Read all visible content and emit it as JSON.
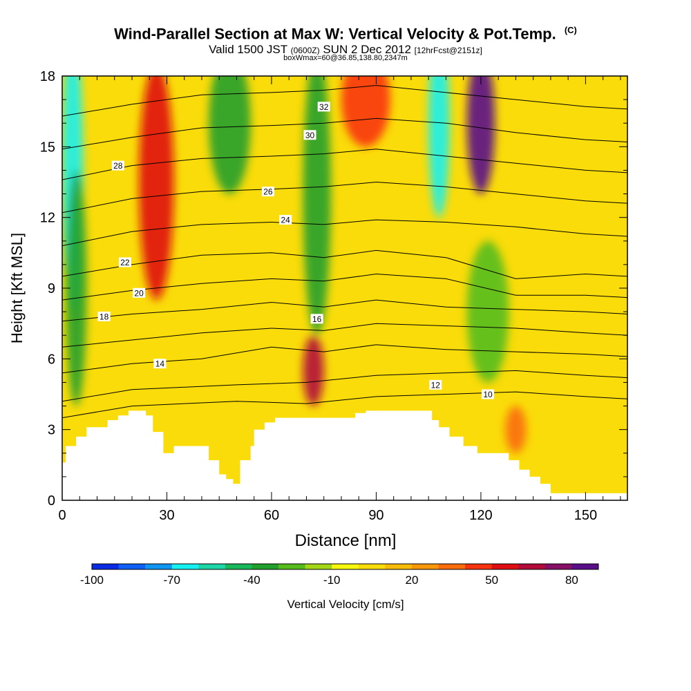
{
  "header": {
    "title_main": "Wind-Parallel Section at Max W: Vertical Velocity & Pot.Temp.",
    "title_mark": "(C)",
    "valid_a": "Valid 1500 JST",
    "valid_b": "(0600Z)",
    "valid_c": "SUN 2 Dec 2012",
    "valid_d": "[12hrFcst@2151z]",
    "box_info": "boxWmax=60@36.85,138.80,2347m"
  },
  "chart_data": {
    "type": "heatmap",
    "xlabel": "Distance [nm]",
    "ylabel": "Height [Kft MSL]",
    "xlim": [
      0,
      162
    ],
    "ylim": [
      0,
      18
    ],
    "x_ticks": [
      "0",
      "30",
      "60",
      "90",
      "120",
      "150"
    ],
    "x_tick_values": [
      0,
      30,
      60,
      90,
      120,
      150
    ],
    "y_ticks": [
      "0",
      "3",
      "6",
      "9",
      "12",
      "15",
      "18"
    ],
    "y_tick_values": [
      0,
      3,
      6,
      9,
      12,
      15,
      18
    ],
    "colorbar": {
      "label": "Vertical Velocity [cm/s]",
      "min": -100,
      "max": 90,
      "step": 10,
      "tick_labels": [
        "-100",
        "-70",
        "-40",
        "-10",
        "20",
        "50",
        "80"
      ],
      "tick_values": [
        -100,
        -70,
        -40,
        -10,
        20,
        50,
        80
      ],
      "colors": [
        "#0a2be6",
        "#0d5ff5",
        "#0f96f2",
        "#17f0f0",
        "#1cd6a8",
        "#18b85a",
        "#22a02e",
        "#55bc1c",
        "#a3d716",
        "#f7f70e",
        "#fadc0a",
        "#f9bb08",
        "#f9970a",
        "#f96d0d",
        "#f8330d",
        "#df0e10",
        "#b10c3a",
        "#871066",
        "#5a0e8a"
      ]
    },
    "terrain": [
      [
        0,
        1.6
      ],
      [
        1,
        1.6
      ],
      [
        1,
        2.3
      ],
      [
        4,
        2.3
      ],
      [
        4,
        2.7
      ],
      [
        7,
        2.7
      ],
      [
        7,
        3.1
      ],
      [
        13,
        3.1
      ],
      [
        13,
        3.4
      ],
      [
        16,
        3.4
      ],
      [
        16,
        3.6
      ],
      [
        19,
        3.6
      ],
      [
        19,
        3.8
      ],
      [
        24,
        3.8
      ],
      [
        24,
        3.6
      ],
      [
        26,
        3.6
      ],
      [
        26,
        2.9
      ],
      [
        29,
        2.9
      ],
      [
        29,
        2.0
      ],
      [
        32,
        2.0
      ],
      [
        32,
        2.3
      ],
      [
        42,
        2.3
      ],
      [
        42,
        1.7
      ],
      [
        45,
        1.7
      ],
      [
        45,
        1.1
      ],
      [
        47,
        1.1
      ],
      [
        47,
        0.9
      ],
      [
        49,
        0.9
      ],
      [
        49,
        0.7
      ],
      [
        51,
        0.7
      ],
      [
        51,
        1.7
      ],
      [
        54,
        1.7
      ],
      [
        54,
        2.3
      ],
      [
        55,
        2.3
      ],
      [
        55,
        3.0
      ],
      [
        58,
        3.0
      ],
      [
        58,
        3.3
      ],
      [
        61,
        3.3
      ],
      [
        61,
        3.5
      ],
      [
        84,
        3.5
      ],
      [
        84,
        3.7
      ],
      [
        87,
        3.7
      ],
      [
        87,
        3.8
      ],
      [
        106,
        3.8
      ],
      [
        106,
        3.4
      ],
      [
        108,
        3.4
      ],
      [
        108,
        3.1
      ],
      [
        111,
        3.1
      ],
      [
        111,
        2.7
      ],
      [
        115,
        2.7
      ],
      [
        115,
        2.3
      ],
      [
        119,
        2.3
      ],
      [
        119,
        2.0
      ],
      [
        128,
        2.0
      ],
      [
        128,
        1.7
      ],
      [
        131,
        1.7
      ],
      [
        131,
        1.3
      ],
      [
        134,
        1.3
      ],
      [
        134,
        1.0
      ],
      [
        137,
        1.0
      ],
      [
        137,
        0.7
      ],
      [
        140,
        0.7
      ],
      [
        140,
        0.3
      ],
      [
        162,
        0.3
      ]
    ],
    "contours": [
      {
        "value": 10,
        "label": "10",
        "points": [
          [
            0,
            3.5
          ],
          [
            20,
            4.0
          ],
          [
            50,
            4.2
          ],
          [
            70,
            4.1
          ],
          [
            90,
            4.4
          ],
          [
            110,
            4.5
          ],
          [
            130,
            4.6
          ],
          [
            150,
            4.4
          ],
          [
            162,
            4.3
          ]
        ],
        "label_at": [
          122,
          4.5
        ]
      },
      {
        "value": 12,
        "label": "12",
        "points": [
          [
            0,
            4.2
          ],
          [
            20,
            4.7
          ],
          [
            50,
            4.9
          ],
          [
            70,
            5.0
          ],
          [
            90,
            5.3
          ],
          [
            110,
            5.4
          ],
          [
            130,
            5.5
          ],
          [
            150,
            5.3
          ],
          [
            162,
            5.2
          ]
        ],
        "label_at": [
          107,
          4.9
        ]
      },
      {
        "value": 14,
        "label": "14",
        "points": [
          [
            0,
            5.4
          ],
          [
            20,
            5.8
          ],
          [
            40,
            6.0
          ],
          [
            60,
            6.5
          ],
          [
            75,
            6.3
          ],
          [
            90,
            6.6
          ],
          [
            110,
            6.4
          ],
          [
            130,
            6.3
          ],
          [
            150,
            6.2
          ],
          [
            162,
            6.1
          ]
        ],
        "label_at": [
          28,
          5.8
        ]
      },
      {
        "value": 16,
        "label": "16",
        "points": [
          [
            0,
            6.5
          ],
          [
            20,
            6.8
          ],
          [
            40,
            7.1
          ],
          [
            60,
            7.3
          ],
          [
            75,
            7.2
          ],
          [
            90,
            7.5
          ],
          [
            110,
            7.4
          ],
          [
            130,
            7.3
          ],
          [
            150,
            7.1
          ],
          [
            162,
            7.0
          ]
        ],
        "label_at": [
          73,
          7.7
        ]
      },
      {
        "value": 18,
        "label": "18",
        "points": [
          [
            0,
            7.6
          ],
          [
            20,
            7.9
          ],
          [
            40,
            8.1
          ],
          [
            60,
            8.4
          ],
          [
            75,
            8.2
          ],
          [
            90,
            8.5
          ],
          [
            110,
            8.2
          ],
          [
            130,
            8.1
          ],
          [
            150,
            8.0
          ],
          [
            162,
            7.9
          ]
        ],
        "label_at": [
          12,
          7.8
        ]
      },
      {
        "value": 20,
        "label": "20",
        "points": [
          [
            0,
            8.5
          ],
          [
            20,
            8.9
          ],
          [
            40,
            9.2
          ],
          [
            60,
            9.4
          ],
          [
            75,
            9.3
          ],
          [
            90,
            9.6
          ],
          [
            110,
            9.4
          ],
          [
            130,
            8.7
          ],
          [
            150,
            8.7
          ],
          [
            162,
            8.6
          ]
        ],
        "label_at": [
          22,
          8.8
        ]
      },
      {
        "value": 22,
        "label": "22",
        "points": [
          [
            0,
            9.5
          ],
          [
            20,
            10.0
          ],
          [
            40,
            10.4
          ],
          [
            60,
            10.5
          ],
          [
            75,
            10.3
          ],
          [
            90,
            10.6
          ],
          [
            110,
            10.3
          ],
          [
            130,
            9.4
          ],
          [
            150,
            9.6
          ],
          [
            162,
            9.5
          ]
        ],
        "label_at": [
          18,
          10.1
        ]
      },
      {
        "value": 24,
        "label": "24",
        "points": [
          [
            0,
            10.8
          ],
          [
            20,
            11.4
          ],
          [
            40,
            11.7
          ],
          [
            60,
            11.8
          ],
          [
            75,
            11.7
          ],
          [
            90,
            11.9
          ],
          [
            110,
            11.8
          ],
          [
            130,
            11.6
          ],
          [
            150,
            11.3
          ],
          [
            162,
            11.2
          ]
        ],
        "label_at": [
          64,
          11.9
        ]
      },
      {
        "value": 26,
        "label": "26",
        "points": [
          [
            0,
            12.2
          ],
          [
            20,
            12.8
          ],
          [
            40,
            13.1
          ],
          [
            60,
            13.2
          ],
          [
            75,
            13.3
          ],
          [
            90,
            13.5
          ],
          [
            110,
            13.3
          ],
          [
            130,
            13.0
          ],
          [
            150,
            12.7
          ],
          [
            162,
            12.6
          ]
        ],
        "label_at": [
          59,
          13.1
        ]
      },
      {
        "value": 28,
        "label": "28",
        "points": [
          [
            0,
            13.6
          ],
          [
            20,
            14.2
          ],
          [
            40,
            14.5
          ],
          [
            60,
            14.6
          ],
          [
            75,
            14.7
          ],
          [
            90,
            14.9
          ],
          [
            110,
            14.6
          ],
          [
            130,
            14.3
          ],
          [
            150,
            14.0
          ],
          [
            162,
            13.9
          ]
        ],
        "label_at": [
          16,
          14.2
        ]
      },
      {
        "value": 30,
        "label": "30",
        "points": [
          [
            0,
            14.9
          ],
          [
            20,
            15.4
          ],
          [
            40,
            15.8
          ],
          [
            60,
            15.9
          ],
          [
            75,
            16.0
          ],
          [
            90,
            16.2
          ],
          [
            110,
            16.0
          ],
          [
            130,
            15.6
          ],
          [
            150,
            15.3
          ],
          [
            162,
            15.2
          ]
        ],
        "label_at": [
          71,
          15.5
        ]
      },
      {
        "value": 32,
        "label": "32",
        "points": [
          [
            0,
            16.3
          ],
          [
            20,
            16.8
          ],
          [
            40,
            17.2
          ],
          [
            60,
            17.3
          ],
          [
            75,
            17.4
          ],
          [
            90,
            17.6
          ],
          [
            110,
            17.3
          ],
          [
            130,
            17.0
          ],
          [
            150,
            16.7
          ],
          [
            162,
            16.6
          ]
        ],
        "label_at": [
          75,
          16.7
        ]
      }
    ],
    "w_features": [
      {
        "x": 3,
        "y": 14.0,
        "rx": 3,
        "ry": 6,
        "value": -70
      },
      {
        "x": 4,
        "y": 9.0,
        "rx": 3,
        "ry": 5,
        "value": -40
      },
      {
        "x": 27,
        "y": 13.5,
        "rx": 5,
        "ry": 5,
        "value": 50
      },
      {
        "x": 48,
        "y": 16.0,
        "rx": 6,
        "ry": 3,
        "value": -40
      },
      {
        "x": 73,
        "y": 13.0,
        "rx": 4,
        "ry": 6,
        "value": -40
      },
      {
        "x": 72,
        "y": 5.5,
        "rx": 3,
        "ry": 1.5,
        "value": 60
      },
      {
        "x": 87,
        "y": 17.0,
        "rx": 7,
        "ry": 2,
        "value": 40
      },
      {
        "x": 108,
        "y": 16.0,
        "rx": 3,
        "ry": 4,
        "value": -70
      },
      {
        "x": 120,
        "y": 16.0,
        "rx": 4,
        "ry": 3,
        "value": 80
      },
      {
        "x": 122,
        "y": 8.0,
        "rx": 6,
        "ry": 3,
        "value": -30
      },
      {
        "x": 130,
        "y": 3.0,
        "rx": 3,
        "ry": 1,
        "value": 30
      }
    ]
  }
}
